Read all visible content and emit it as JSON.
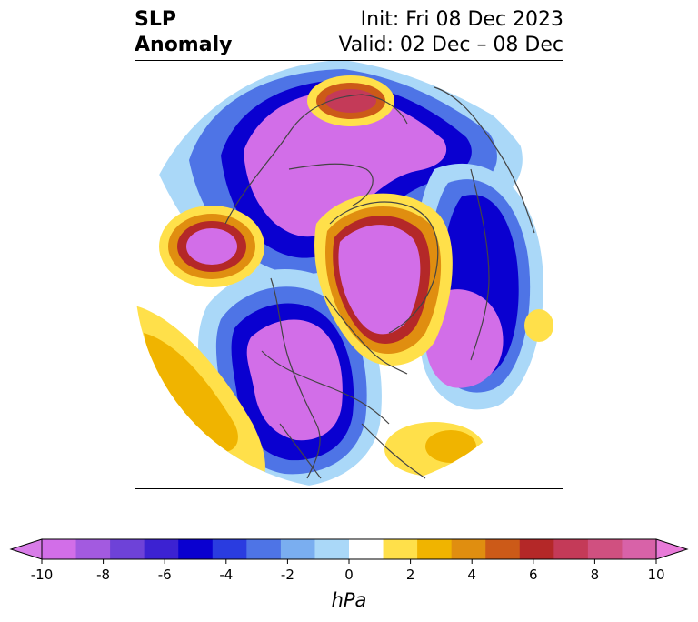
{
  "title": {
    "line1": "SLP",
    "line2": "Anomaly"
  },
  "init": {
    "line1": "Init: Fri 08 Dec 2023",
    "line2": "Valid: 02 Dec – 08 Dec"
  },
  "colorbar": {
    "label": "hPa",
    "ticks": [
      "-10",
      "-8",
      "-6",
      "-4",
      "-2",
      "0",
      "2",
      "4",
      "6",
      "8",
      "10"
    ],
    "under_color": "#d87ce8",
    "over_color": "#e87ad8",
    "colors": [
      "#d26ee8",
      "#a35ae0",
      "#6e42d8",
      "#3c22d2",
      "#0a00d0",
      "#2a3ce0",
      "#4e74e6",
      "#7aaef0",
      "#aad8f8",
      "#ffffff",
      "#ffe04a",
      "#f0b400",
      "#e08e10",
      "#cc5a18",
      "#b42828",
      "#c43a58",
      "#d05080",
      "#d862a8"
    ]
  },
  "map": {
    "land_outline_color": "#444444",
    "background": "#ffffff"
  }
}
